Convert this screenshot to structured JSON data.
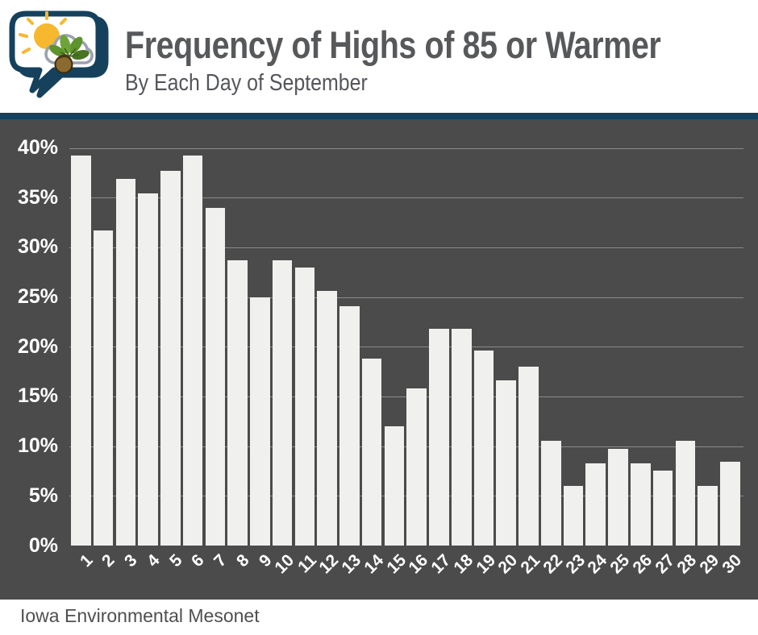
{
  "header": {
    "title": "Frequency of Highs of 85 or Warmer",
    "subtitle": "By Each Day of September",
    "logo": "iem-speech-bubble-logo"
  },
  "footer": {
    "source": "Iowa Environmental Mesonet"
  },
  "colors": {
    "accent_navy": "#15415c",
    "chart_background": "#4b4b4b",
    "bar_fill": "#f0f0ee",
    "gridline": "#8a8a8a",
    "axis_text": "#ffffff",
    "title_text": "#57585a",
    "logo_sun": "#f5b82e",
    "logo_cloud_outline": "#9aa2ae",
    "logo_leaf": "#5e942c",
    "logo_acorn": "#7c5f28"
  },
  "chart_data": {
    "type": "bar",
    "title": "Frequency of Highs of 85 or Warmer",
    "subtitle": "By Each Day of September",
    "xlabel": "",
    "ylabel": "",
    "categories": [
      "1",
      "2",
      "3",
      "4",
      "5",
      "6",
      "7",
      "8",
      "9",
      "10",
      "11",
      "12",
      "13",
      "14",
      "15",
      "16",
      "17",
      "18",
      "19",
      "20",
      "21",
      "22",
      "23",
      "24",
      "25",
      "26",
      "27",
      "28",
      "29",
      "30"
    ],
    "values": [
      39.2,
      31.7,
      36.9,
      35.4,
      37.7,
      39.2,
      34.0,
      28.7,
      25.0,
      28.7,
      28.0,
      25.6,
      24.1,
      18.8,
      12.0,
      15.8,
      21.8,
      21.8,
      19.6,
      16.6,
      18.0,
      10.5,
      6.0,
      8.3,
      9.7,
      8.3,
      7.5,
      10.5,
      6.0,
      8.4
    ],
    "ytick_labels": [
      "0%",
      "5%",
      "10%",
      "15%",
      "20%",
      "25%",
      "30%",
      "35%",
      "40%"
    ],
    "ytick_values": [
      0,
      5,
      10,
      15,
      20,
      25,
      30,
      35,
      40
    ],
    "ylim": [
      0,
      42.9
    ],
    "grid": true,
    "legend": null,
    "source": "Iowa Environmental Mesonet"
  }
}
